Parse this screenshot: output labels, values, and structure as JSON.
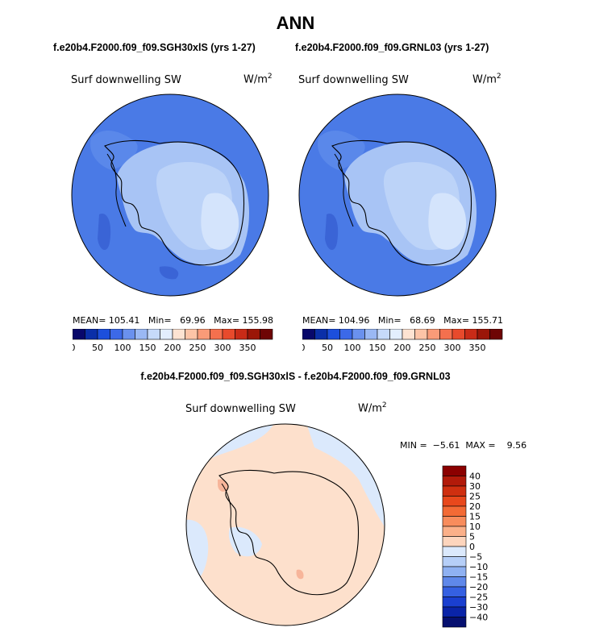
{
  "header": {
    "title": "ANN",
    "left_case": "f.e20b4.F2000.f09_f09.SGH30xlS (yrs 1-27)",
    "right_case": "f.e20b4.F2000.f09_f09.GRNL03 (yrs 1-27)",
    "diff_title": "f.e20b4.F2000.f09_f09.SGH30xlS - f.e20b4.F2000.f09_f09.GRNL03"
  },
  "panels": {
    "variable": "Surf downwelling SW",
    "units_base": "W/m",
    "units_exp": "2",
    "left_stats": "MEAN= 105.41   Min=   69.96   Max= 155.98",
    "right_stats": "MEAN= 104.96   Min=   68.69   Max= 155.71",
    "diff_stats": "MIN =  −5.61  MAX =    9.56"
  },
  "colors": {
    "coast": "#000000",
    "ocean_field": "#4a7ae6",
    "inland_field": "#a8c4f5",
    "plateau_field": "#d4e4fc",
    "near_zero_pos": "#fde0cc",
    "near_zero_neg": "#dbe9fc",
    "small_pos": "#f7b59a"
  },
  "chart_data": [
    {
      "type": "heatmap",
      "projection": "south-polar-stereographic",
      "case": "f.e20b4.F2000.f09_f09.SGH30xlS (yrs 1-27)",
      "variable": "Surf downwelling SW",
      "units": "W/m^2",
      "mean": 105.41,
      "min": 69.96,
      "max": 155.98,
      "colorbar": {
        "tick_labels": [
          "0",
          "50",
          "100",
          "150",
          "200",
          "250",
          "300",
          "350"
        ],
        "colors": [
          "#08086b",
          "#0a2fa8",
          "#1c4fdc",
          "#3c69e8",
          "#6a91ee",
          "#9ab8f4",
          "#c6dafa",
          "#e3eefd",
          "#fde3d2",
          "#fcc4a7",
          "#f99b78",
          "#f4704e",
          "#e84a2c",
          "#c92b17",
          "#9b1608",
          "#6e0505"
        ]
      }
    },
    {
      "type": "heatmap",
      "projection": "south-polar-stereographic",
      "case": "f.e20b4.F2000.f09_f09.GRNL03 (yrs 1-27)",
      "variable": "Surf downwelling SW",
      "units": "W/m^2",
      "mean": 104.96,
      "min": 68.69,
      "max": 155.71,
      "colorbar": {
        "tick_labels": [
          "0",
          "50",
          "100",
          "150",
          "200",
          "250",
          "300",
          "350"
        ],
        "colors": [
          "#08086b",
          "#0a2fa8",
          "#1c4fdc",
          "#3c69e8",
          "#6a91ee",
          "#9ab8f4",
          "#c6dafa",
          "#e3eefd",
          "#fde3d2",
          "#fcc4a7",
          "#f99b78",
          "#f4704e",
          "#e84a2c",
          "#c92b17",
          "#9b1608",
          "#6e0505"
        ]
      }
    },
    {
      "type": "heatmap",
      "projection": "south-polar-stereographic",
      "case": "f.e20b4.F2000.f09_f09.SGH30xlS - f.e20b4.F2000.f09_f09.GRNL03",
      "variable": "Surf downwelling SW",
      "units": "W/m^2",
      "min": -5.61,
      "max": 9.56,
      "colorbar": {
        "tick_labels": [
          "40",
          "30",
          "25",
          "20",
          "15",
          "10",
          "5",
          "0",
          "−5",
          "−10",
          "−15",
          "−20",
          "−25",
          "−30",
          "−40"
        ],
        "colors_top_to_bottom": [
          "#8b0000",
          "#b21a0a",
          "#cf2f10",
          "#e8481c",
          "#f36a35",
          "#f88c5c",
          "#fbb089",
          "#fdd5bd",
          "#dbe9fc",
          "#b6cff8",
          "#8fb1f2",
          "#5f88ea",
          "#3560e2",
          "#1a3fd0",
          "#0a24a8",
          "#061070"
        ]
      }
    }
  ]
}
